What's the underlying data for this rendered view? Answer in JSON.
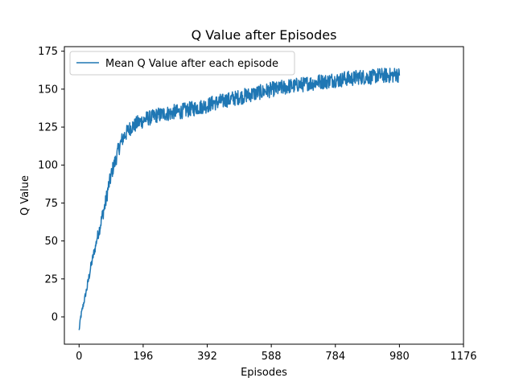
{
  "chart_data": {
    "type": "line",
    "title": "Q Value after Episodes",
    "xlabel": "Episodes",
    "ylabel": "Q Value",
    "xlim": [
      -45,
      1176
    ],
    "ylim": [
      -18,
      178
    ],
    "xticks": [
      0,
      196,
      392,
      588,
      784,
      980,
      1176
    ],
    "yticks": [
      0,
      25,
      50,
      75,
      100,
      125,
      150,
      175
    ],
    "grid": false,
    "legend": {
      "position": "top-left"
    },
    "series": [
      {
        "name": "Mean Q Value after each episode",
        "color": "#1f77b4",
        "x": [
          0,
          5,
          10,
          15,
          20,
          25,
          30,
          35,
          40,
          45,
          50,
          55,
          60,
          65,
          70,
          75,
          80,
          85,
          90,
          95,
          100,
          105,
          110,
          115,
          120,
          125,
          130,
          135,
          140,
          145,
          150,
          155,
          160,
          165,
          170,
          175,
          180,
          185,
          190,
          195,
          200,
          210,
          220,
          230,
          240,
          250,
          260,
          270,
          280,
          290,
          300,
          310,
          320,
          330,
          340,
          350,
          360,
          370,
          380,
          390,
          400,
          410,
          420,
          430,
          440,
          450,
          460,
          470,
          480,
          490,
          500,
          510,
          520,
          530,
          540,
          550,
          560,
          570,
          580,
          590,
          600,
          610,
          620,
          630,
          640,
          650,
          660,
          670,
          680,
          690,
          700,
          710,
          720,
          730,
          740,
          750,
          760,
          770,
          780,
          790,
          800,
          810,
          820,
          830,
          840,
          850,
          860,
          870,
          880,
          890,
          900,
          910,
          920,
          930,
          940,
          950,
          960,
          970,
          980
        ],
        "values": [
          -9,
          0,
          5,
          10,
          15,
          20,
          26,
          32,
          37,
          42,
          46,
          52,
          56,
          60,
          66,
          70,
          74,
          80,
          86,
          90,
          95,
          99,
          102,
          106,
          110,
          113,
          116,
          118,
          120,
          121,
          123,
          124,
          125,
          126,
          126,
          127,
          128,
          128,
          129,
          129,
          130,
          131,
          131,
          132,
          133,
          133,
          134,
          134,
          134,
          135,
          135,
          135,
          136,
          136,
          137,
          137,
          138,
          138,
          139,
          139,
          140,
          141,
          141,
          142,
          142,
          143,
          143,
          144,
          144,
          145,
          145,
          146,
          146,
          147,
          147,
          148,
          148,
          149,
          149,
          150,
          150,
          150,
          151,
          151,
          152,
          152,
          152,
          153,
          153,
          153,
          154,
          154,
          154,
          155,
          155,
          155,
          155,
          156,
          156,
          156,
          156,
          157,
          157,
          157,
          157,
          158,
          158,
          158,
          158,
          158,
          158,
          159,
          159,
          159,
          159,
          159,
          159,
          160,
          159
        ],
        "noise_amplitude": [
          1,
          2,
          2,
          2,
          2,
          3,
          3,
          3,
          3,
          3,
          3,
          3,
          4,
          4,
          4,
          5,
          5,
          5,
          5,
          5,
          5,
          5,
          5,
          5,
          5,
          5,
          5,
          5,
          5,
          5,
          5,
          5,
          5,
          5,
          5,
          5,
          5,
          5,
          5,
          5,
          5,
          5,
          5,
          5,
          5,
          5,
          5,
          5,
          5,
          5,
          5,
          5,
          5,
          5,
          5,
          5,
          5,
          5,
          5,
          5,
          5,
          5,
          5,
          5,
          5,
          5,
          5,
          5,
          5,
          5,
          5,
          5,
          5,
          5,
          5,
          5,
          5,
          5,
          5,
          5,
          5,
          5,
          5,
          5,
          5,
          5,
          5,
          5,
          5,
          5,
          5,
          5,
          5,
          5,
          5,
          5,
          5,
          5,
          5,
          5,
          5,
          5,
          5,
          5,
          5,
          5,
          5,
          5,
          5,
          5,
          5,
          5,
          5,
          5,
          5,
          5,
          5,
          5,
          5
        ]
      }
    ]
  }
}
